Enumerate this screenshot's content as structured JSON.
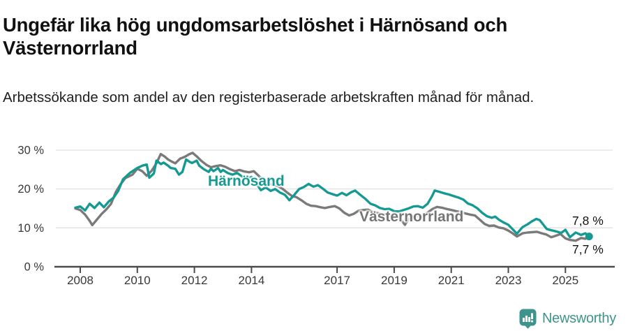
{
  "header": {
    "title": "Ungefär lika hög ungdomsarbetslöshet i Härnösand och Västernorrland",
    "subtitle": "Arbetssökande som andel av den registerbaserade arbetskraften månad för månad."
  },
  "footer": {
    "brand": "Newsworthy",
    "brand_color": "#3e948c",
    "logo_icon": "newsworthy-pin-barchart-icon"
  },
  "chart_data": {
    "type": "line",
    "title": "Ungefär lika hög ungdomsarbetslöshet i Härnösand och Västernorrland",
    "subtitle": "Arbetssökande som andel av den registerbaserade arbetskraften månad för månad.",
    "x_unit": "decimal_year",
    "xlim": [
      2007.6,
      2026.6
    ],
    "ylim": [
      0,
      32
    ],
    "grid": "horizontal-only",
    "grid_color": "#e1e1e1",
    "axis_color": "#4a4a4a",
    "tick_label_color": "#383838",
    "y_ticks": [
      0,
      10,
      20,
      30
    ],
    "y_tick_labels": [
      "0 %",
      "10 %",
      "20 %",
      "30 %"
    ],
    "x_ticks": [
      2008,
      2010,
      2012,
      2014,
      2017,
      2019,
      2021,
      2023,
      2025
    ],
    "x_tick_labels": [
      "2008",
      "2010",
      "2012",
      "2014",
      "2017",
      "2019",
      "2021",
      "2023",
      "2025"
    ],
    "legend_position": "inline-series-labels",
    "series": [
      {
        "name": "Härnösand",
        "color": "#149a92",
        "end_label": "7,8 %",
        "final_value": 7.8,
        "end_dot": true,
        "points": [
          [
            2007.83,
            15.2
          ],
          [
            2008.0,
            15.5
          ],
          [
            2008.17,
            14.5
          ],
          [
            2008.33,
            16.2
          ],
          [
            2008.5,
            15.1
          ],
          [
            2008.67,
            16.5
          ],
          [
            2008.83,
            15.3
          ],
          [
            2009.0,
            16.8
          ],
          [
            2009.17,
            17.8
          ],
          [
            2009.33,
            19.5
          ],
          [
            2009.5,
            22.5
          ],
          [
            2009.75,
            24.2
          ],
          [
            2010.0,
            25.4
          ],
          [
            2010.17,
            26.0
          ],
          [
            2010.33,
            26.3
          ],
          [
            2010.42,
            22.9
          ],
          [
            2010.58,
            24.0
          ],
          [
            2010.67,
            27.3
          ],
          [
            2010.83,
            26.4
          ],
          [
            2010.92,
            26.8
          ],
          [
            2011.08,
            26.0
          ],
          [
            2011.17,
            25.4
          ],
          [
            2011.33,
            25.2
          ],
          [
            2011.46,
            23.7
          ],
          [
            2011.58,
            24.4
          ],
          [
            2011.71,
            27.6
          ],
          [
            2011.83,
            27.0
          ],
          [
            2011.92,
            26.7
          ],
          [
            2012.08,
            27.3
          ],
          [
            2012.17,
            26.0
          ],
          [
            2012.33,
            25.1
          ],
          [
            2012.5,
            24.4
          ],
          [
            2012.58,
            25.2
          ],
          [
            2012.67,
            24.6
          ],
          [
            2012.83,
            25.4
          ],
          [
            2012.92,
            24.4
          ],
          [
            2013.0,
            24.9
          ],
          [
            2013.17,
            24.1
          ],
          [
            2013.33,
            23.7
          ],
          [
            2013.5,
            24.1
          ],
          [
            2013.67,
            23.2
          ],
          [
            2013.83,
            22.7
          ],
          [
            2014.0,
            23.1
          ],
          [
            2014.17,
            21.4
          ],
          [
            2014.33,
            19.7
          ],
          [
            2014.5,
            20.4
          ],
          [
            2014.67,
            19.5
          ],
          [
            2014.83,
            20.0
          ],
          [
            2015.0,
            19.1
          ],
          [
            2015.17,
            18.5
          ],
          [
            2015.33,
            17.1
          ],
          [
            2015.5,
            18.5
          ],
          [
            2015.67,
            20.0
          ],
          [
            2015.83,
            20.5
          ],
          [
            2016.0,
            21.3
          ],
          [
            2016.17,
            20.6
          ],
          [
            2016.33,
            21.0
          ],
          [
            2016.5,
            20.1
          ],
          [
            2016.67,
            19.1
          ],
          [
            2016.83,
            18.7
          ],
          [
            2017.0,
            18.3
          ],
          [
            2017.17,
            19.0
          ],
          [
            2017.33,
            18.4
          ],
          [
            2017.5,
            19.2
          ],
          [
            2017.63,
            19.6
          ],
          [
            2017.83,
            18.4
          ],
          [
            2018.0,
            17.4
          ],
          [
            2018.17,
            16.2
          ],
          [
            2018.33,
            15.8
          ],
          [
            2018.5,
            15.1
          ],
          [
            2018.67,
            14.8
          ],
          [
            2018.83,
            14.9
          ],
          [
            2019.0,
            14.3
          ],
          [
            2019.17,
            14.2
          ],
          [
            2019.33,
            14.6
          ],
          [
            2019.5,
            15.0
          ],
          [
            2019.67,
            15.5
          ],
          [
            2019.83,
            15.6
          ],
          [
            2020.0,
            15.2
          ],
          [
            2020.17,
            16.2
          ],
          [
            2020.33,
            18.2
          ],
          [
            2020.42,
            19.6
          ],
          [
            2020.58,
            19.3
          ],
          [
            2020.75,
            18.9
          ],
          [
            2020.92,
            18.6
          ],
          [
            2021.08,
            18.2
          ],
          [
            2021.25,
            17.8
          ],
          [
            2021.42,
            17.3
          ],
          [
            2021.58,
            16.3
          ],
          [
            2021.75,
            15.8
          ],
          [
            2021.92,
            15.0
          ],
          [
            2022.08,
            13.9
          ],
          [
            2022.25,
            13.0
          ],
          [
            2022.42,
            12.6
          ],
          [
            2022.54,
            12.9
          ],
          [
            2022.67,
            12.1
          ],
          [
            2022.83,
            11.4
          ],
          [
            2023.0,
            10.8
          ],
          [
            2023.17,
            9.5
          ],
          [
            2023.3,
            8.5
          ],
          [
            2023.5,
            10.2
          ],
          [
            2023.67,
            10.9
          ],
          [
            2023.83,
            11.7
          ],
          [
            2023.98,
            12.3
          ],
          [
            2024.1,
            12.0
          ],
          [
            2024.25,
            10.6
          ],
          [
            2024.35,
            9.7
          ],
          [
            2024.5,
            9.4
          ],
          [
            2024.67,
            9.1
          ],
          [
            2024.85,
            8.7
          ],
          [
            2025.0,
            9.5
          ],
          [
            2025.16,
            7.6
          ],
          [
            2025.36,
            8.8
          ],
          [
            2025.55,
            8.2
          ],
          [
            2025.7,
            8.6
          ],
          [
            2025.83,
            7.8
          ]
        ]
      },
      {
        "name": "Västernorrland",
        "color": "#7a7a7a",
        "end_label": "7,7 %",
        "final_value": 7.7,
        "end_dot": false,
        "points": [
          [
            2007.83,
            15.0
          ],
          [
            2008.0,
            14.6
          ],
          [
            2008.17,
            13.4
          ],
          [
            2008.33,
            11.8
          ],
          [
            2008.42,
            10.7
          ],
          [
            2008.58,
            12.1
          ],
          [
            2008.75,
            13.6
          ],
          [
            2008.92,
            14.8
          ],
          [
            2009.08,
            16.2
          ],
          [
            2009.25,
            19.3
          ],
          [
            2009.42,
            21.3
          ],
          [
            2009.58,
            22.8
          ],
          [
            2009.83,
            23.7
          ],
          [
            2010.0,
            25.2
          ],
          [
            2010.17,
            24.6
          ],
          [
            2010.33,
            23.4
          ],
          [
            2010.5,
            24.7
          ],
          [
            2010.67,
            26.6
          ],
          [
            2010.82,
            29.0
          ],
          [
            2010.95,
            28.4
          ],
          [
            2011.08,
            27.6
          ],
          [
            2011.17,
            27.2
          ],
          [
            2011.33,
            26.6
          ],
          [
            2011.5,
            27.8
          ],
          [
            2011.67,
            28.3
          ],
          [
            2011.83,
            29.0
          ],
          [
            2011.94,
            29.3
          ],
          [
            2012.08,
            28.4
          ],
          [
            2012.25,
            27.2
          ],
          [
            2012.42,
            26.2
          ],
          [
            2012.58,
            25.6
          ],
          [
            2012.75,
            25.9
          ],
          [
            2012.92,
            26.1
          ],
          [
            2013.08,
            25.7
          ],
          [
            2013.25,
            25.1
          ],
          [
            2013.42,
            24.6
          ],
          [
            2013.58,
            24.9
          ],
          [
            2013.75,
            24.5
          ],
          [
            2013.92,
            24.3
          ],
          [
            2014.08,
            24.6
          ],
          [
            2014.25,
            23.4
          ],
          [
            2014.42,
            22.2
          ],
          [
            2014.58,
            21.5
          ],
          [
            2014.75,
            21.1
          ],
          [
            2014.92,
            20.8
          ],
          [
            2015.08,
            20.1
          ],
          [
            2015.25,
            19.1
          ],
          [
            2015.42,
            18.2
          ],
          [
            2015.58,
            17.9
          ],
          [
            2015.75,
            17.1
          ],
          [
            2015.92,
            16.2
          ],
          [
            2016.08,
            15.7
          ],
          [
            2016.25,
            15.6
          ],
          [
            2016.42,
            15.3
          ],
          [
            2016.58,
            15.1
          ],
          [
            2016.75,
            15.4
          ],
          [
            2016.92,
            15.6
          ],
          [
            2017.08,
            15.0
          ],
          [
            2017.25,
            13.9
          ],
          [
            2017.42,
            13.2
          ],
          [
            2017.58,
            13.6
          ],
          [
            2017.75,
            14.4
          ],
          [
            2017.92,
            14.6
          ],
          [
            2018.08,
            14.7
          ],
          [
            2018.25,
            14.1
          ],
          [
            2018.42,
            13.8
          ],
          [
            2018.58,
            13.5
          ],
          [
            2018.75,
            13.4
          ],
          [
            2018.92,
            13.2
          ],
          [
            2019.08,
            12.9
          ],
          [
            2019.25,
            12.0
          ],
          [
            2019.38,
            10.8
          ],
          [
            2019.5,
            12.3
          ],
          [
            2019.67,
            12.8
          ],
          [
            2019.83,
            13.0
          ],
          [
            2020.0,
            13.2
          ],
          [
            2020.17,
            13.9
          ],
          [
            2020.33,
            14.8
          ],
          [
            2020.5,
            15.4
          ],
          [
            2020.67,
            15.2
          ],
          [
            2020.83,
            14.9
          ],
          [
            2021.0,
            14.6
          ],
          [
            2021.17,
            14.3
          ],
          [
            2021.33,
            14.1
          ],
          [
            2021.5,
            13.7
          ],
          [
            2021.67,
            13.4
          ],
          [
            2021.83,
            13.2
          ],
          [
            2022.0,
            12.1
          ],
          [
            2022.17,
            11.0
          ],
          [
            2022.33,
            10.5
          ],
          [
            2022.5,
            10.6
          ],
          [
            2022.67,
            10.1
          ],
          [
            2022.83,
            9.9
          ],
          [
            2023.0,
            9.3
          ],
          [
            2023.17,
            8.5
          ],
          [
            2023.3,
            7.8
          ],
          [
            2023.5,
            8.6
          ],
          [
            2023.67,
            8.8
          ],
          [
            2023.83,
            8.9
          ],
          [
            2024.0,
            9.0
          ],
          [
            2024.17,
            8.6
          ],
          [
            2024.33,
            8.3
          ],
          [
            2024.5,
            7.6
          ],
          [
            2024.67,
            8.0
          ],
          [
            2024.83,
            8.4
          ],
          [
            2025.0,
            7.3
          ],
          [
            2025.16,
            6.9
          ],
          [
            2025.36,
            6.7
          ],
          [
            2025.55,
            7.4
          ],
          [
            2025.7,
            7.2
          ],
          [
            2025.83,
            7.7
          ]
        ]
      }
    ]
  }
}
